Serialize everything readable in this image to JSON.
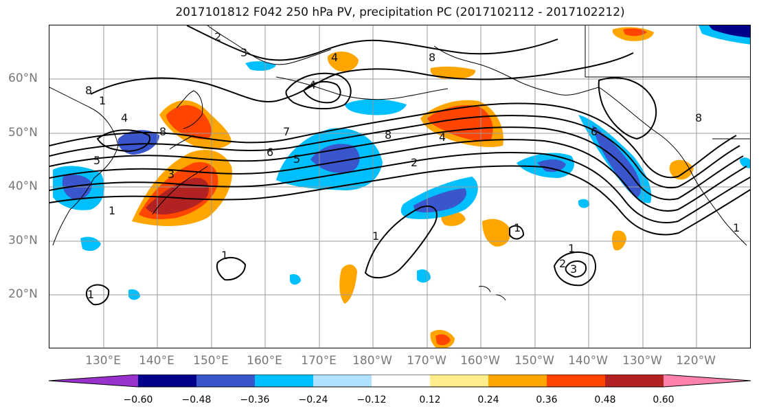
{
  "title": "2017101812 F042 250 hPa PV, precipitation PC (2017102112 - 2017102212)",
  "map": {
    "lat_labels": [
      "60°N",
      "50°N",
      "40°N",
      "30°N",
      "20°N"
    ],
    "lon_labels": [
      "130°E",
      "140°E",
      "150°E",
      "160°E",
      "170°E",
      "180°W",
      "170°W",
      "160°W",
      "150°W",
      "140°W",
      "130°W",
      "120°W"
    ],
    "contour_labels": [
      "2",
      "3",
      "4",
      "8",
      "1",
      "4",
      "8",
      "5",
      "1",
      "3",
      "4",
      "6",
      "5",
      "7",
      "8",
      "2",
      "8",
      "4",
      "1",
      "1",
      "1",
      "1",
      "1",
      "2",
      "3",
      "6",
      "8",
      "1"
    ]
  },
  "colorbar": {
    "ticks": [
      "−0.60",
      "−0.48",
      "−0.36",
      "−0.24",
      "−0.12",
      "0.12",
      "0.24",
      "0.36",
      "0.48",
      "0.60"
    ],
    "colors": [
      "#9932cc",
      "#00008b",
      "#3a56cc",
      "#00bfff",
      "#b0e2ff",
      "#ffffff",
      "#ffec8b",
      "#ffa500",
      "#ff4500",
      "#b22222",
      "#ff82ab"
    ]
  }
}
